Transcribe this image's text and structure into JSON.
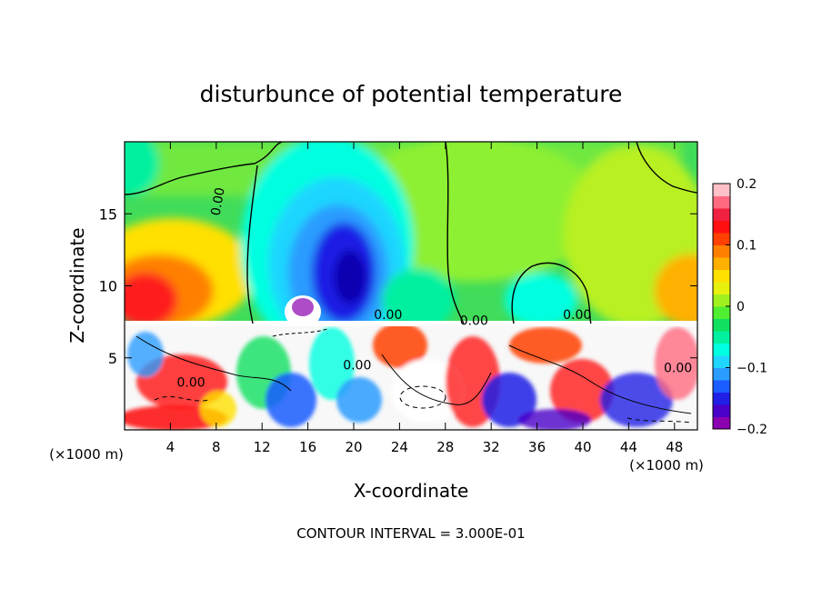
{
  "chart_data": {
    "type": "heatmap",
    "title": "disturbunce of potential temperature",
    "xlabel": "X-coordinate",
    "ylabel": "Z-coordinate",
    "x_unit_left": "(×1000 m)",
    "x_unit_right": "(×1000 m)",
    "footer": "CONTOUR INTERVAL = 3.000E-01",
    "xlim": [
      0,
      50
    ],
    "ylim": [
      0,
      20
    ],
    "x_ticks": [
      4,
      8,
      12,
      16,
      20,
      24,
      28,
      32,
      36,
      40,
      44,
      48
    ],
    "y_ticks": [
      5,
      10,
      15
    ],
    "colorbar": {
      "min": -0.2,
      "max": 0.2,
      "tick_values": [
        0.2,
        0.1,
        0,
        -0.1,
        -0.2
      ],
      "tick_labels": [
        "0.2",
        "0.1",
        "0",
        "−0.1",
        "−0.2"
      ],
      "colors": [
        "#8b00b0",
        "#4a00c8",
        "#1f1fe6",
        "#1a5cff",
        "#2a9cff",
        "#1fd6ff",
        "#00ffe0",
        "#00f0a0",
        "#10e060",
        "#50ee30",
        "#a0f020",
        "#e8f010",
        "#ffe000",
        "#ffb000",
        "#ff8000",
        "#ff4000",
        "#ff1010",
        "#f02040",
        "#ff6a80",
        "#ffc0c8"
      ]
    },
    "contour_labels": [
      {
        "text": "0.00",
        "x": 8.5,
        "y": 15.8
      },
      {
        "text": "0.00",
        "x": 23,
        "y": 7.7
      },
      {
        "text": "0.00",
        "x": 30.5,
        "y": 7.3
      },
      {
        "text": "0.00",
        "x": 39.5,
        "y": 7.7
      },
      {
        "text": "0.00",
        "x": 5.8,
        "y": 3.0
      },
      {
        "text": "0.00",
        "x": 48.3,
        "y": 4.0
      },
      {
        "text": "0.00",
        "x": 20.3,
        "y": 4.2
      }
    ]
  }
}
